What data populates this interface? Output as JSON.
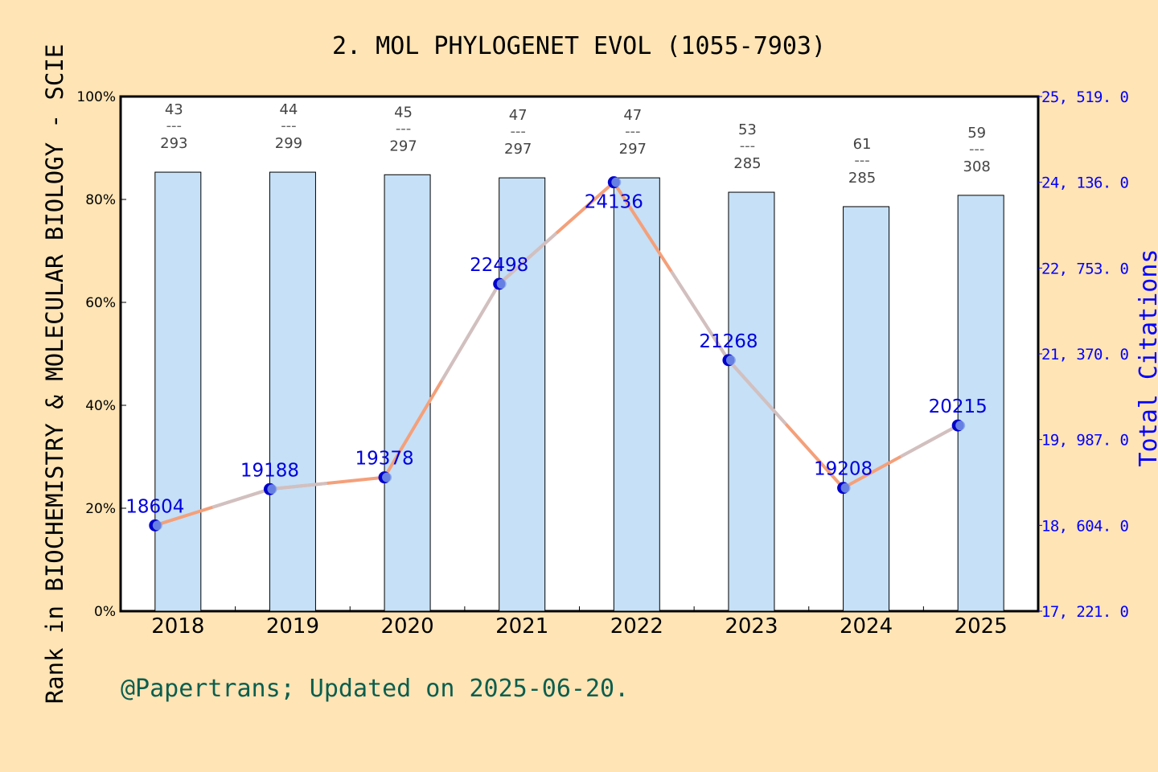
{
  "chart_data": {
    "type": "bar+line",
    "title": "2. MOL PHYLOGENET EVOL (1055-7903)",
    "ylabel": "Rank in BIOCHEMISTRY & MOLECULAR BIOLOGY - SCIE",
    "y2label": "Total Citations",
    "footer": "@Papertrans; Updated on 2025-06-20.",
    "categories": [
      "2018",
      "2019",
      "2020",
      "2021",
      "2022",
      "2023",
      "2024",
      "2025"
    ],
    "ylim": [
      0,
      100
    ],
    "yticks": [
      "0%",
      "20%",
      "40%",
      "60%",
      "80%",
      "100%"
    ],
    "y2lim": [
      17221,
      25519
    ],
    "y2ticks": [
      "17, 221. 0",
      "18, 604. 0",
      "19, 987. 0",
      "21, 370. 0",
      "22, 753. 0",
      "24, 136. 0",
      "25, 519. 0"
    ],
    "bars": {
      "rank": [
        43,
        44,
        45,
        47,
        47,
        53,
        61,
        59
      ],
      "total": [
        293,
        299,
        297,
        297,
        297,
        285,
        285,
        308
      ],
      "values_percent": [
        85.3,
        85.3,
        84.8,
        84.2,
        84.2,
        81.4,
        78.6,
        80.8
      ],
      "color": "#c5e0f7"
    },
    "series": [
      {
        "name": "Total Citations",
        "values": [
          18604,
          19188,
          19378,
          22498,
          24136,
          21268,
          19208,
          20215
        ],
        "color": "#f4a07a",
        "marker_color": "#0000cc"
      }
    ],
    "grid": false,
    "colors": {
      "background": "#ffe4b5",
      "axis2": "#0000ff",
      "footer": "#0b5e4e"
    }
  }
}
